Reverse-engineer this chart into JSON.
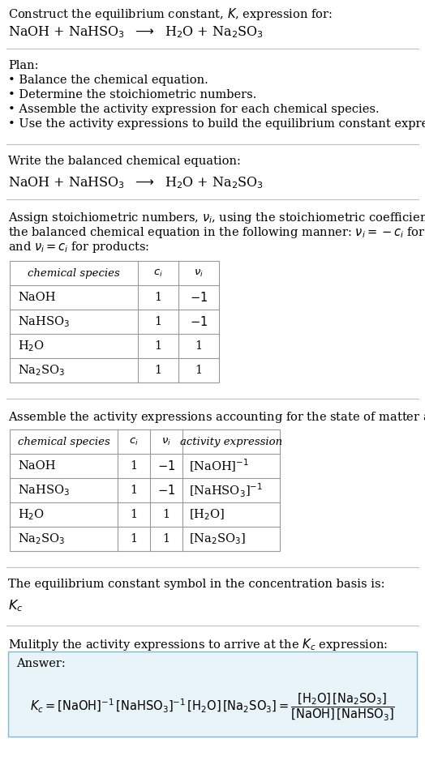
{
  "bg_color": "#ffffff",
  "text_color": "#000000",
  "title_line1": "Construct the equilibrium constant, $K$, expression for:",
  "reaction_eq": "NaOH + NaHSO$_3$  $\\longrightarrow$  H$_2$O + Na$_2$SO$_3$",
  "plan_header": "Plan:",
  "plan_items": [
    "• Balance the chemical equation.",
    "• Determine the stoichiometric numbers.",
    "• Assemble the activity expression for each chemical species.",
    "• Use the activity expressions to build the equilibrium constant expression."
  ],
  "balanced_header": "Write the balanced chemical equation:",
  "balanced_eq": "NaOH + NaHSO$_3$  $\\longrightarrow$  H$_2$O + Na$_2$SO$_3$",
  "stoich_intro_lines": [
    "Assign stoichiometric numbers, $\\nu_i$, using the stoichiometric coefficients, $c_i$, from",
    "the balanced chemical equation in the following manner: $\\nu_i = -c_i$ for reactants",
    "and $\\nu_i = c_i$ for products:"
  ],
  "table1_headers": [
    "chemical species",
    "$c_i$",
    "$\\nu_i$"
  ],
  "table1_rows": [
    [
      "NaOH",
      "1",
      "$-1$"
    ],
    [
      "NaHSO$_3$",
      "1",
      "$-1$"
    ],
    [
      "H$_2$O",
      "1",
      "1"
    ],
    [
      "Na$_2$SO$_3$",
      "1",
      "1"
    ]
  ],
  "activity_intro": "Assemble the activity expressions accounting for the state of matter and $\\nu_i$:",
  "table2_headers": [
    "chemical species",
    "$c_i$",
    "$\\nu_i$",
    "activity expression"
  ],
  "table2_rows": [
    [
      "NaOH",
      "1",
      "$-1$",
      "[NaOH]$^{-1}$"
    ],
    [
      "NaHSO$_3$",
      "1",
      "$-1$",
      "[NaHSO$_3$]$^{-1}$"
    ],
    [
      "H$_2$O",
      "1",
      "1",
      "[H$_2$O]"
    ],
    [
      "Na$_2$SO$_3$",
      "1",
      "1",
      "[Na$_2$SO$_3$]"
    ]
  ],
  "kc_text": "The equilibrium constant symbol in the concentration basis is:",
  "kc_symbol": "$K_c$",
  "multiply_text": "Mulitply the activity expressions to arrive at the $K_c$ expression:",
  "answer_box_color": "#e8f4f8",
  "answer_box_border": "#7fb8d4",
  "answer_label": "Answer:",
  "divider_color": "#c0c0c0",
  "table_border_color": "#999999",
  "font_size": 10.5
}
